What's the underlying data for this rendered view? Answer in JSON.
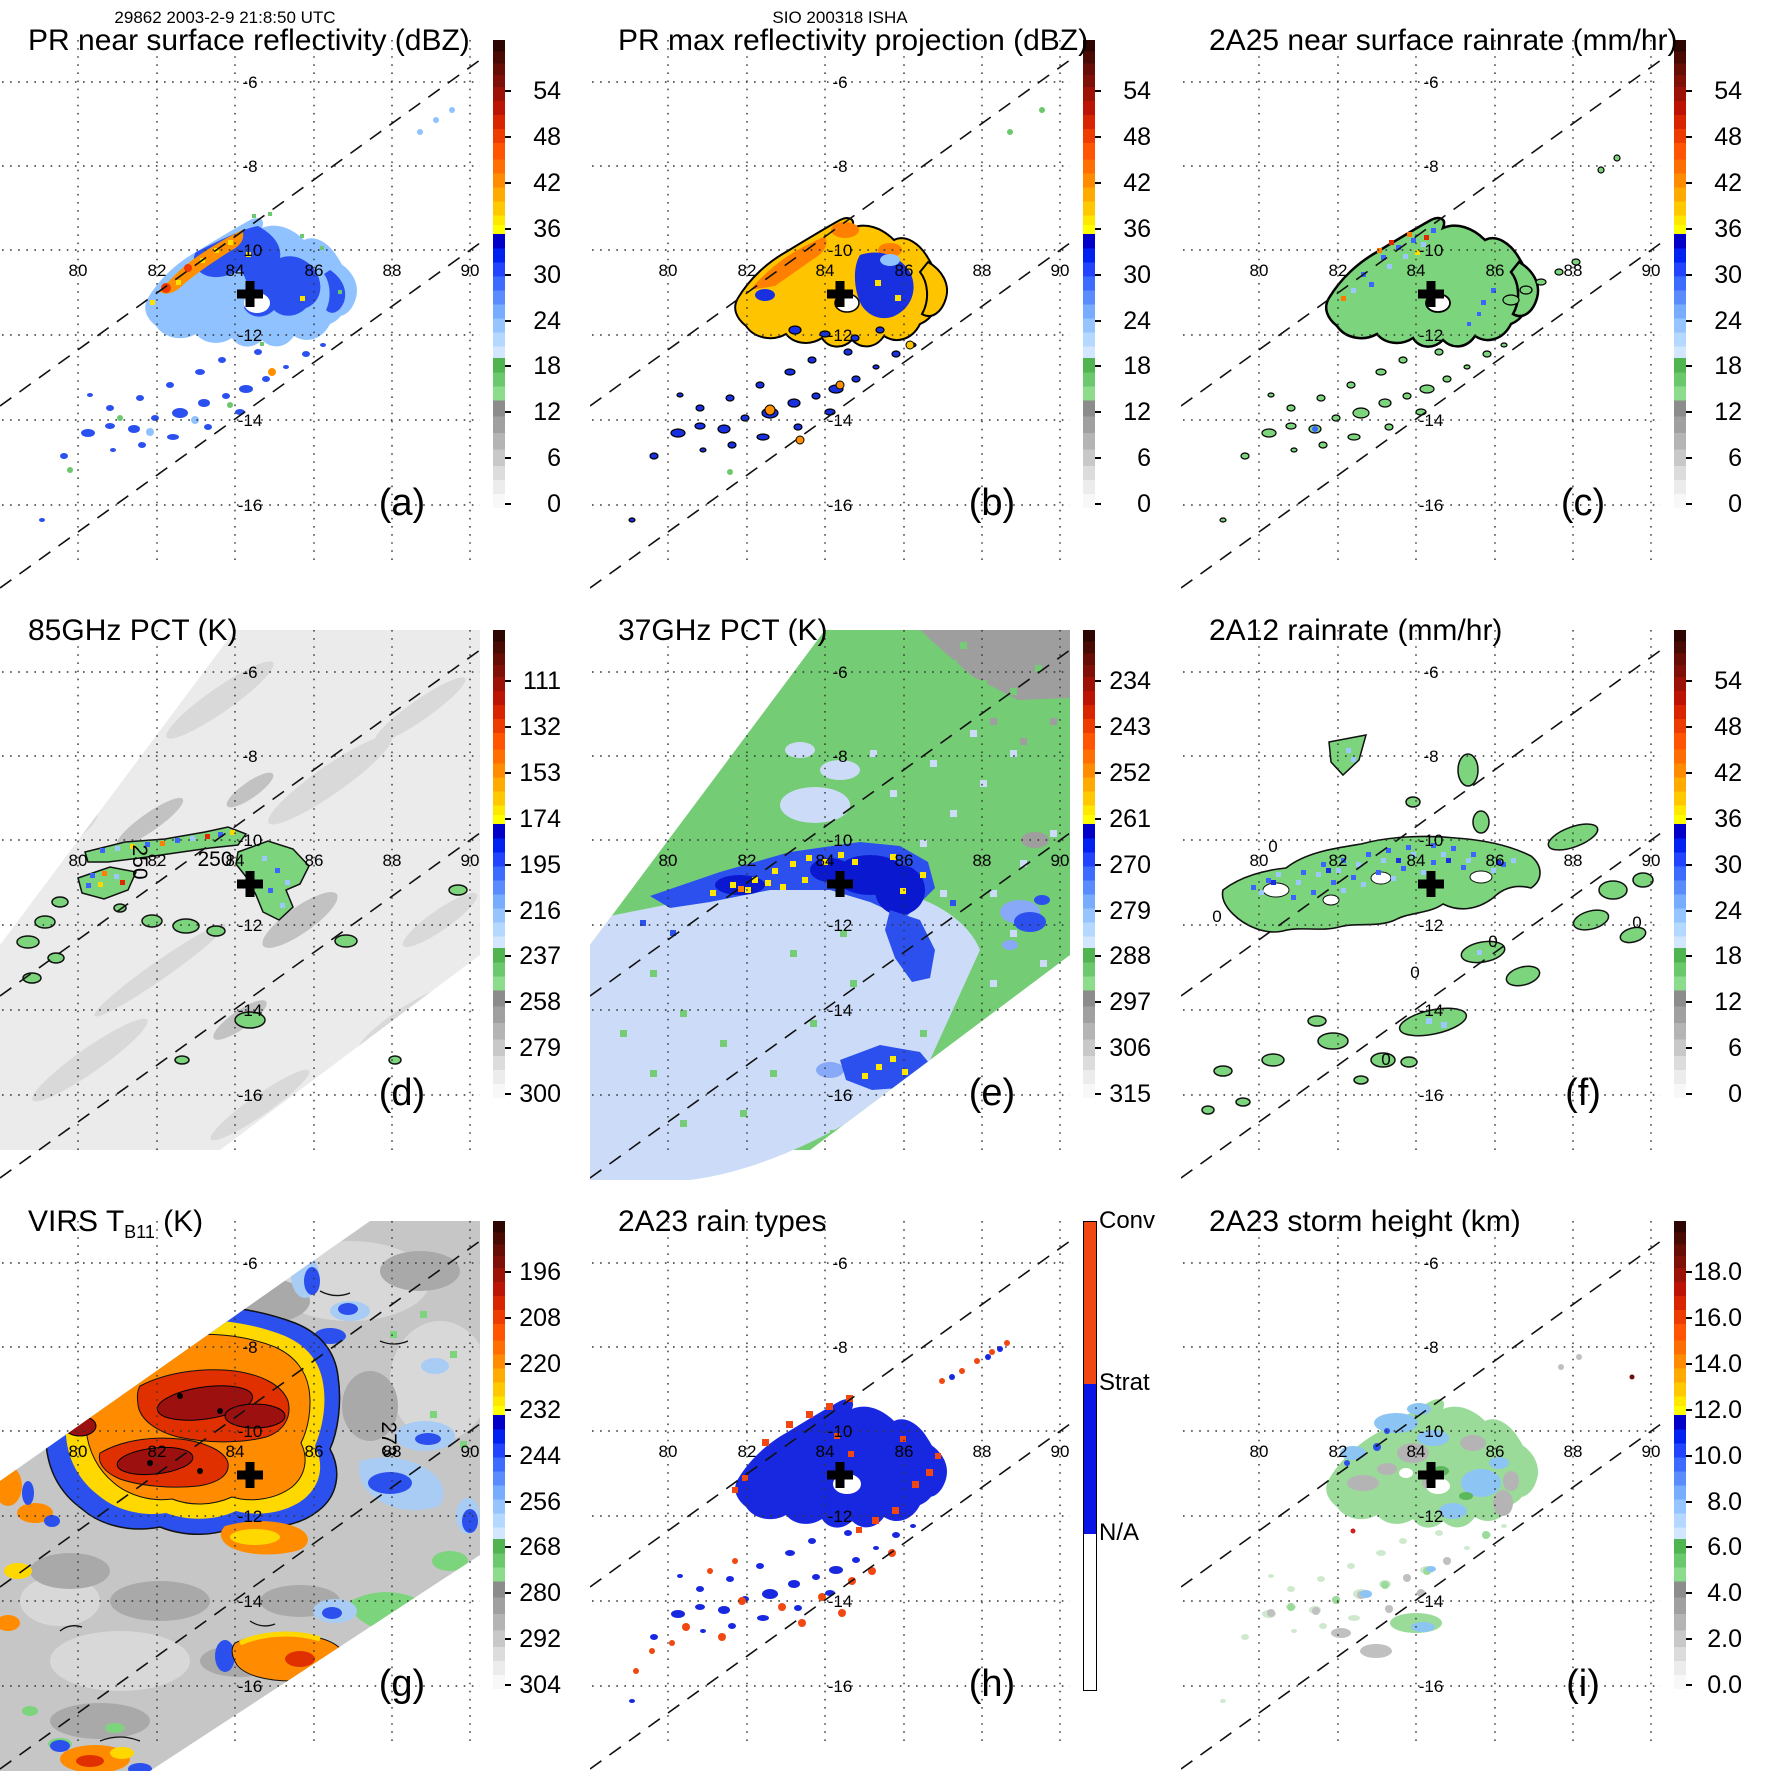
{
  "header": {
    "left": "29862 2003-2-9 21:8:50 UTC",
    "center": "SIO 200318 ISHA"
  },
  "grid": {
    "lat_labels": [
      "-6",
      "-8",
      "-10",
      "-12",
      "-14",
      "-16"
    ],
    "lon_labels": [
      "80",
      "82",
      "84",
      "86",
      "88",
      "90"
    ]
  },
  "panels": [
    {
      "id": "a",
      "title": "PR near surface reflectivity (dBZ)",
      "letter": "(a)",
      "colorbar": "dbz"
    },
    {
      "id": "b",
      "title": "PR max reflectivity projection (dBZ)",
      "letter": "(b)",
      "colorbar": "dbz"
    },
    {
      "id": "c",
      "title": "2A25 near surface rainrate (mm/hr)",
      "letter": "(c)",
      "colorbar": "dbz"
    },
    {
      "id": "d",
      "title": "85GHz PCT (K)",
      "letter": "(d)",
      "colorbar": "pct85",
      "contour_labels": [
        "250",
        "250"
      ]
    },
    {
      "id": "e",
      "title": "37GHz PCT (K)",
      "letter": "(e)",
      "colorbar": "pct37"
    },
    {
      "id": "f",
      "title": "2A12 rainrate (mm/hr)",
      "letter": "(f)",
      "colorbar": "dbz",
      "contour_labels": [
        "0",
        "0",
        "0",
        "0",
        "0",
        "0"
      ]
    },
    {
      "id": "g",
      "title_parts": {
        "main": "VIRS T",
        "sub": "B11",
        "tail": " (K)"
      },
      "letter": "(g)",
      "colorbar": "virs",
      "contour_labels": [
        "273"
      ]
    },
    {
      "id": "h",
      "title": "2A23 rain types",
      "letter": "(h)",
      "colorbar": "raintype"
    },
    {
      "id": "i",
      "title": "2A23 storm height (km)",
      "letter": "(i)",
      "colorbar": "height"
    }
  ],
  "colorbars": {
    "dbz": [
      "54",
      "48",
      "42",
      "36",
      "30",
      "24",
      "18",
      "12",
      "6",
      "0"
    ],
    "pct85": [
      "111",
      "132",
      "153",
      "174",
      "195",
      "216",
      "237",
      "258",
      "279",
      "300"
    ],
    "pct37": [
      "234",
      "243",
      "252",
      "261",
      "270",
      "279",
      "288",
      "297",
      "306",
      "315"
    ],
    "virs": [
      "196",
      "208",
      "220",
      "232",
      "244",
      "256",
      "268",
      "280",
      "292",
      "304"
    ],
    "height": [
      "18.0",
      "16.0",
      "14.0",
      "12.0",
      "10.0",
      "8.0",
      "6.0",
      "4.0",
      "2.0",
      "0.0"
    ],
    "raintype": [
      "Conv",
      "Strat",
      "N/A"
    ]
  },
  "marker": {
    "type": "plus",
    "color": "#000000",
    "lon": 84.4,
    "lat": -11.1
  },
  "colors": {
    "convective": "#f04810",
    "stratiform": "#0a14e6",
    "swath_green": "#74cc74",
    "blob_green": "#7cd47c",
    "blue": "#2b50ee",
    "light_blue": "#8fc2ff",
    "pale_blue": "#ccdcf8",
    "yellow": "#ffe000",
    "orange": "#ff8c00",
    "red": "#e03000",
    "dark_red": "#9c1010",
    "gray": "#b4b4b4"
  },
  "chart_data": [
    {
      "type": "heatmap",
      "panel": "a",
      "title": "PR near surface reflectivity (dBZ)",
      "units": "dBZ",
      "colorbar_ticks": [
        54,
        48,
        42,
        36,
        30,
        24,
        18,
        12,
        6,
        0
      ],
      "lon_ticks": [
        80,
        82,
        84,
        86,
        88,
        90
      ],
      "lat_ticks": [
        -6,
        -8,
        -10,
        -12,
        -14,
        -16
      ],
      "storm_center": {
        "lon": 84.4,
        "lat": -11.1
      }
    },
    {
      "type": "heatmap",
      "panel": "b",
      "title": "PR max reflectivity projection (dBZ)",
      "units": "dBZ",
      "colorbar_ticks": [
        54,
        48,
        42,
        36,
        30,
        24,
        18,
        12,
        6,
        0
      ],
      "lon_ticks": [
        80,
        82,
        84,
        86,
        88,
        90
      ],
      "lat_ticks": [
        -6,
        -8,
        -10,
        -12,
        -14,
        -16
      ],
      "storm_center": {
        "lon": 84.4,
        "lat": -11.1
      }
    },
    {
      "type": "heatmap",
      "panel": "c",
      "title": "2A25 near surface rainrate (mm/hr)",
      "units": "mm/hr",
      "colorbar_ticks": [
        54,
        48,
        42,
        36,
        30,
        24,
        18,
        12,
        6,
        0
      ],
      "lon_ticks": [
        80,
        82,
        84,
        86,
        88,
        90
      ],
      "lat_ticks": [
        -6,
        -8,
        -10,
        -12,
        -14,
        -16
      ],
      "storm_center": {
        "lon": 84.4,
        "lat": -11.1
      }
    },
    {
      "type": "heatmap",
      "panel": "d",
      "title": "85GHz PCT (K)",
      "units": "K",
      "colorbar_ticks": [
        111,
        132,
        153,
        174,
        195,
        216,
        237,
        258,
        279,
        300
      ],
      "contours": [
        250
      ],
      "lon_ticks": [
        80,
        82,
        84,
        86,
        88,
        90
      ],
      "lat_ticks": [
        -6,
        -8,
        -10,
        -12,
        -14,
        -16
      ],
      "storm_center": {
        "lon": 84.4,
        "lat": -11.1
      }
    },
    {
      "type": "heatmap",
      "panel": "e",
      "title": "37GHz PCT (K)",
      "units": "K",
      "colorbar_ticks": [
        234,
        243,
        252,
        261,
        270,
        279,
        288,
        297,
        306,
        315
      ],
      "lon_ticks": [
        80,
        82,
        84,
        86,
        88,
        90
      ],
      "lat_ticks": [
        -6,
        -8,
        -10,
        -12,
        -14,
        -16
      ],
      "storm_center": {
        "lon": 84.4,
        "lat": -11.1
      }
    },
    {
      "type": "heatmap",
      "panel": "f",
      "title": "2A12 rainrate (mm/hr)",
      "units": "mm/hr",
      "colorbar_ticks": [
        54,
        48,
        42,
        36,
        30,
        24,
        18,
        12,
        6,
        0
      ],
      "contours": [
        0
      ],
      "lon_ticks": [
        80,
        82,
        84,
        86,
        88,
        90
      ],
      "lat_ticks": [
        -6,
        -8,
        -10,
        -12,
        -14,
        -16
      ],
      "storm_center": {
        "lon": 84.4,
        "lat": -11.1
      }
    },
    {
      "type": "heatmap",
      "panel": "g",
      "title": "VIRS TB11 (K)",
      "units": "K",
      "colorbar_ticks": [
        196,
        208,
        220,
        232,
        244,
        256,
        268,
        280,
        292,
        304
      ],
      "contours": [
        273
      ],
      "lon_ticks": [
        80,
        82,
        84,
        86,
        88,
        90
      ],
      "lat_ticks": [
        -6,
        -8,
        -10,
        -12,
        -14,
        -16
      ],
      "storm_center": {
        "lon": 84.4,
        "lat": -11.1
      }
    },
    {
      "type": "categorical-map",
      "panel": "h",
      "title": "2A23 rain types",
      "categories": [
        "Conv",
        "Strat",
        "N/A"
      ],
      "category_colors": [
        "#f04810",
        "#0a14e6",
        "#ffffff"
      ],
      "lon_ticks": [
        80,
        82,
        84,
        86,
        88,
        90
      ],
      "lat_ticks": [
        -6,
        -8,
        -10,
        -12,
        -14,
        -16
      ],
      "storm_center": {
        "lon": 84.4,
        "lat": -11.1
      }
    },
    {
      "type": "heatmap",
      "panel": "i",
      "title": "2A23 storm height (km)",
      "units": "km",
      "colorbar_ticks": [
        18.0,
        16.0,
        14.0,
        12.0,
        10.0,
        8.0,
        6.0,
        4.0,
        2.0,
        0.0
      ],
      "lon_ticks": [
        80,
        82,
        84,
        86,
        88,
        90
      ],
      "lat_ticks": [
        -6,
        -8,
        -10,
        -12,
        -14,
        -16
      ],
      "storm_center": {
        "lon": 84.4,
        "lat": -11.1
      }
    }
  ]
}
